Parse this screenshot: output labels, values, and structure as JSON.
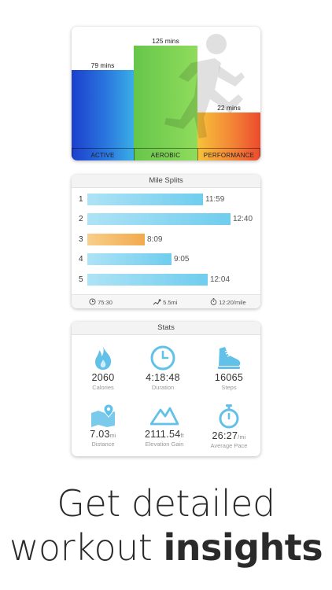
{
  "zones": {
    "bars": [
      {
        "label": "ACTIVE",
        "value": "79 mins"
      },
      {
        "label": "AEROBIC",
        "value": "125 mins"
      },
      {
        "label": "PERFORMANCE",
        "value": "22 mins"
      }
    ]
  },
  "splits": {
    "title": "Mile Splits",
    "rows": [
      {
        "mile": "1",
        "time": "11:59",
        "fraction": 0.81,
        "best": false
      },
      {
        "mile": "2",
        "time": "12:40",
        "fraction": 1.0,
        "best": false
      },
      {
        "mile": "3",
        "time": "8:09",
        "fraction": 0.4,
        "best": true
      },
      {
        "mile": "4",
        "time": "9:05",
        "fraction": 0.59,
        "best": false
      },
      {
        "mile": "5",
        "time": "12:04",
        "fraction": 0.84,
        "best": false
      }
    ],
    "footer": {
      "time": "75:30",
      "distance": "5.5mi",
      "pace": "12:20/mile"
    }
  },
  "stats": {
    "title": "Stats",
    "items": [
      {
        "icon": "flame-icon",
        "value": "2060",
        "unit": "",
        "label": "Calories"
      },
      {
        "icon": "clock-icon",
        "value": "4:18:48",
        "unit": "",
        "label": "Duration"
      },
      {
        "icon": "shoe-icon",
        "value": "16065",
        "unit": "",
        "label": "Steps"
      },
      {
        "icon": "map-pin-icon",
        "value": "7.03",
        "unit": "mi",
        "label": "Distance"
      },
      {
        "icon": "mountain-icon",
        "value": "2111.54",
        "unit": "ft",
        "label": "Elevation Gain"
      },
      {
        "icon": "stopwatch-icon",
        "value": "26:27",
        "unit": "/mi",
        "label": "Average Pace"
      }
    ]
  },
  "tagline": {
    "line1": "Get detailed",
    "line2_light": "workout",
    "line2_bold": "insights"
  },
  "colors": {
    "accent": "#5bc3e9",
    "best": "#f2a94d",
    "active": "#1c3fcc",
    "aerobic": "#7bd255",
    "performance": "#ec4a2d"
  }
}
